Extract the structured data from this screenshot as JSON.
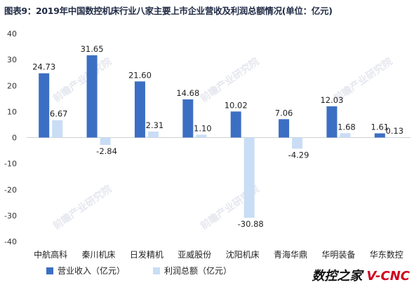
{
  "title": "图表9：2019年中国数控机床行业八家主要上市企业营收及利润总额情况(单位：亿元)",
  "watermark": "前瞻产业研究院",
  "footer": {
    "brand_cn": "数控之家",
    "brand_en": "V-CNC"
  },
  "colors": {
    "revenue": "#3b6fc4",
    "profit": "#c9ddf5"
  },
  "chart_data": {
    "type": "bar",
    "categories": [
      "中航高科",
      "秦川机床",
      "日发精机",
      "亚威股份",
      "沈阳机床",
      "青海华鼎",
      "华明装备",
      "华东数控"
    ],
    "series": [
      {
        "name": "营业收入（亿元）",
        "values": [
          24.73,
          31.65,
          21.6,
          14.68,
          10.02,
          7.06,
          12.03,
          1.61
        ]
      },
      {
        "name": "利润总额（亿元）",
        "values": [
          6.67,
          -2.84,
          2.31,
          1.1,
          -30.88,
          -4.29,
          1.68,
          0.13
        ]
      }
    ],
    "data_labels": [
      [
        "24.73",
        "31.65",
        "21.60",
        "14.68",
        "10.02",
        "7.06",
        "12.03",
        "1.61"
      ],
      [
        "6.67",
        "-2.84",
        "2.31",
        "1.10",
        "-30.88",
        "-4.29",
        "1.68",
        "0.13"
      ]
    ],
    "ylim": [
      -40,
      40
    ],
    "yticks": [
      40,
      30,
      20,
      10,
      0,
      -10,
      -20,
      -30,
      -40
    ],
    "grid": false,
    "legend": "bottom-left"
  }
}
